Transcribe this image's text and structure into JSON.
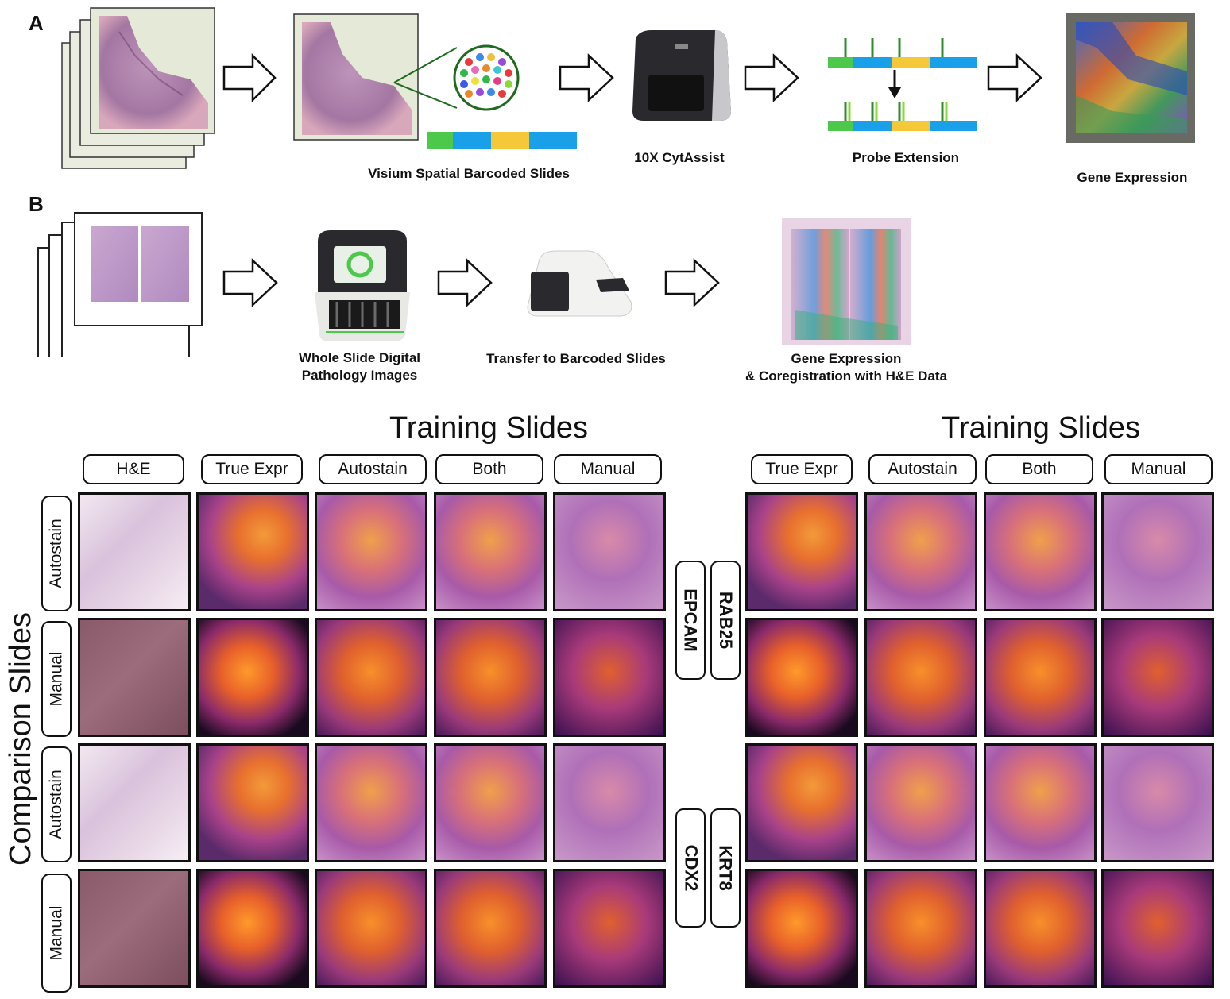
{
  "panelA": {
    "letter": "A",
    "captions": {
      "visium": "Visium Spatial Barcoded Slides",
      "cytassist": "10X CytAssist",
      "probe": "Probe Extension",
      "gene": "Gene Expression"
    }
  },
  "panelB": {
    "letter": "B",
    "captions": {
      "wsi_line1": "Whole Slide Digital",
      "wsi_line2": "Pathology Images",
      "transfer": "Transfer to Barcoded Slides",
      "gene_line1": "Gene Expression",
      "gene_line2": "& Coregistration with H&E Data"
    }
  },
  "grid": {
    "title_left": "Training Slides",
    "title_right": "Training Slides",
    "side_title": "Comparison Slides",
    "left_columns": [
      "H&E",
      "True Expr",
      "Autostain",
      "Both",
      "Manual"
    ],
    "right_columns": [
      "True Expr",
      "Autostain",
      "Both",
      "Manual"
    ],
    "rows": [
      "Autostain",
      "Manual",
      "Autostain",
      "Manual"
    ],
    "genes_left": [
      "EPCAM",
      "CDX2"
    ],
    "genes_right": [
      "RAB25",
      "KRT8"
    ]
  },
  "colors": {
    "barcode_green": "#4cc84a",
    "barcode_blue": "#1aa0e8",
    "barcode_yellow": "#f5c83a",
    "probe_green": "#2e8b2e"
  }
}
